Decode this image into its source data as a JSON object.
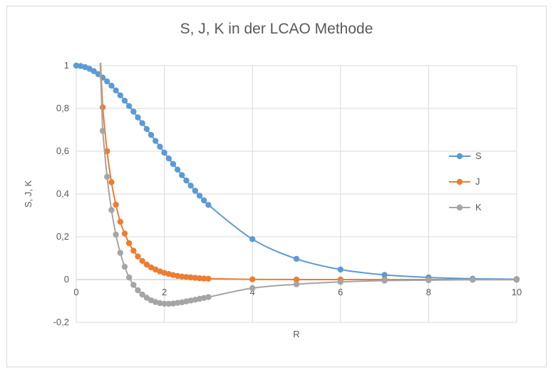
{
  "chart_data": {
    "type": "line",
    "title": "S, J, K in der LCAO Methode",
    "xlabel": "R",
    "ylabel": "S, J, K",
    "xlim": [
      0,
      10
    ],
    "ylim": [
      -0.2,
      1.0
    ],
    "x_ticks": [
      0,
      2,
      4,
      6,
      8,
      10
    ],
    "x_tick_labels": [
      "0",
      "2",
      "4",
      "6",
      "8",
      "10"
    ],
    "y_ticks": [
      -0.2,
      0,
      0.2,
      0.4,
      0.6,
      0.8,
      1.0
    ],
    "y_tick_labels": [
      "-0,2",
      "0",
      "0,2",
      "0,4",
      "0,6",
      "0,8",
      "1"
    ],
    "grid": true,
    "legend_position": "right",
    "series": [
      {
        "name": "S",
        "color": "#5b9bd5",
        "x": [
          0,
          0.1,
          0.2,
          0.3,
          0.4,
          0.5,
          0.6,
          0.7,
          0.8,
          0.9,
          1.0,
          1.1,
          1.2,
          1.3,
          1.4,
          1.5,
          1.6,
          1.7,
          1.8,
          1.9,
          2.0,
          2.1,
          2.2,
          2.3,
          2.4,
          2.5,
          2.6,
          2.7,
          2.8,
          2.9,
          3.0,
          4,
          5,
          6,
          7,
          8,
          9,
          10
        ],
        "y": [
          1.0,
          0.998,
          0.993,
          0.985,
          0.974,
          0.96,
          0.944,
          0.926,
          0.906,
          0.884,
          0.861,
          0.836,
          0.811,
          0.785,
          0.758,
          0.731,
          0.704,
          0.676,
          0.648,
          0.621,
          0.593,
          0.566,
          0.54,
          0.514,
          0.488,
          0.463,
          0.439,
          0.415,
          0.392,
          0.37,
          0.349,
          0.189,
          0.097,
          0.047,
          0.022,
          0.01,
          0.004,
          0.002
        ]
      },
      {
        "name": "J",
        "color": "#ed7d31",
        "x": [
          0.6,
          0.7,
          0.8,
          0.9,
          1.0,
          1.1,
          1.2,
          1.3,
          1.4,
          1.5,
          1.6,
          1.7,
          1.8,
          1.9,
          2.0,
          2.1,
          2.2,
          2.3,
          2.4,
          2.5,
          2.6,
          2.7,
          2.8,
          2.9,
          3.0,
          4,
          5,
          6,
          7,
          8,
          9,
          10
        ],
        "y": [
          0.805,
          0.6,
          0.455,
          0.35,
          0.27,
          0.215,
          0.17,
          0.135,
          0.108,
          0.087,
          0.07,
          0.057,
          0.047,
          0.038,
          0.031,
          0.026,
          0.021,
          0.017,
          0.014,
          0.012,
          0.01,
          0.008,
          0.006,
          0.005,
          0.004,
          0.001,
          0.0,
          0.0,
          0.0,
          0.0,
          0.0,
          0.0
        ]
      },
      {
        "name": "K",
        "color": "#a5a5a5",
        "x": [
          0.6,
          0.7,
          0.8,
          0.9,
          1.0,
          1.1,
          1.2,
          1.3,
          1.4,
          1.5,
          1.6,
          1.7,
          1.8,
          1.9,
          2.0,
          2.1,
          2.2,
          2.3,
          2.4,
          2.5,
          2.6,
          2.7,
          2.8,
          2.9,
          3.0,
          4,
          5,
          6,
          7,
          8,
          9,
          10
        ],
        "y": [
          0.695,
          0.48,
          0.325,
          0.21,
          0.125,
          0.06,
          0.01,
          -0.025,
          -0.05,
          -0.07,
          -0.085,
          -0.097,
          -0.105,
          -0.11,
          -0.113,
          -0.113,
          -0.112,
          -0.109,
          -0.106,
          -0.102,
          -0.098,
          -0.094,
          -0.09,
          -0.086,
          -0.082,
          -0.04,
          -0.022,
          -0.011,
          -0.005,
          -0.003,
          -0.001,
          -0.001
        ]
      }
    ]
  }
}
